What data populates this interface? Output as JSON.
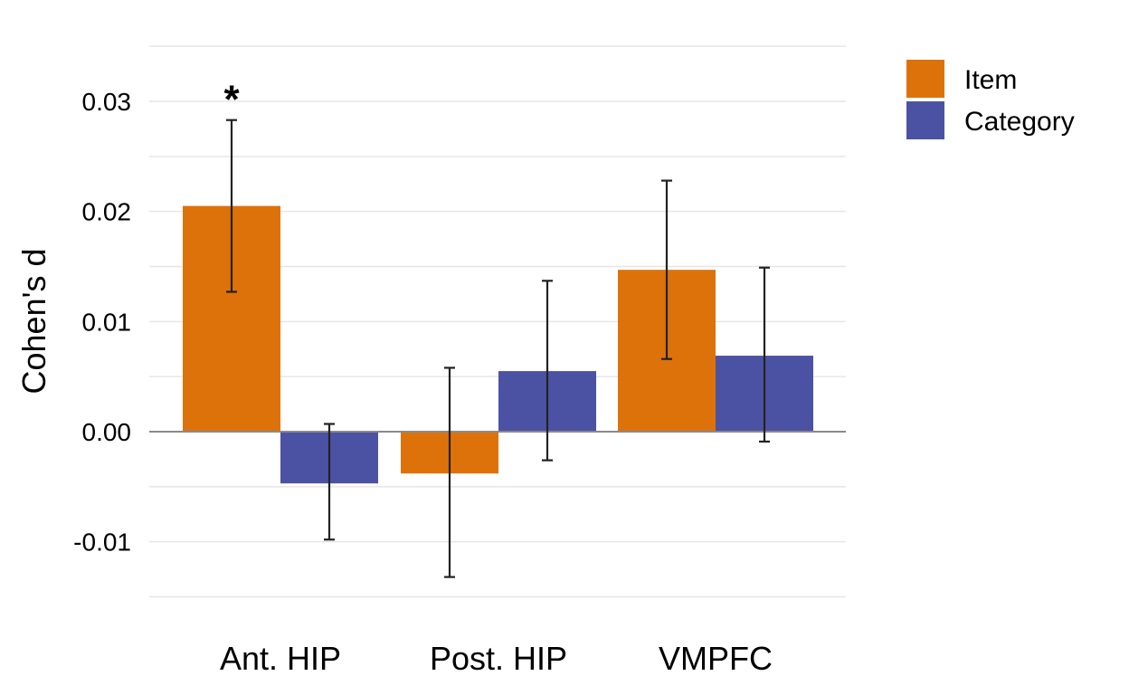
{
  "chart_data": {
    "type": "bar",
    "categories": [
      "Ant. HIP",
      "Post. HIP",
      "VMPFC"
    ],
    "series": [
      {
        "name": "Item",
        "color": "#DD720B",
        "values": [
          0.0205,
          -0.0038,
          0.0147
        ],
        "error_low": [
          0.0127,
          -0.0132,
          0.0066
        ],
        "error_high": [
          0.0283,
          0.0058,
          0.0228
        ]
      },
      {
        "name": "Category",
        "color": "#4C52A3",
        "values": [
          -0.0047,
          0.0055,
          0.0069
        ],
        "error_low": [
          -0.0098,
          -0.0026,
          -0.0009
        ],
        "error_high": [
          0.0007,
          0.0137,
          0.0149
        ]
      }
    ],
    "annotations": [
      {
        "category": "Ant. HIP",
        "series": "Item",
        "text": "*"
      }
    ],
    "ylabel": "Cohen's d",
    "xlabel": "",
    "ylim": [
      -0.0155,
      0.035
    ],
    "yticks": [
      -0.01,
      0.0,
      0.01,
      0.02,
      0.03
    ],
    "ytick_labels": [
      "-0.01",
      "0.00",
      "0.01",
      "0.02",
      "0.03"
    ],
    "grid": true,
    "legend": "right"
  }
}
